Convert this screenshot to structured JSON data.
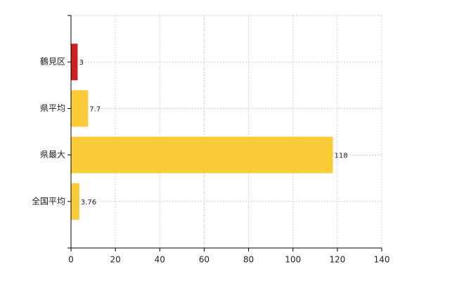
{
  "chart_data": {
    "type": "bar",
    "orientation": "horizontal",
    "categories": [
      "鶴見区",
      "県平均",
      "県最大",
      "全国平均"
    ],
    "values": [
      3,
      7.7,
      118,
      3.76
    ],
    "colors": [
      "#cc2222",
      "#fccb3a",
      "#fccb3a",
      "#fccb3a"
    ],
    "xlim": [
      0,
      140
    ],
    "xticks": [
      0,
      20,
      40,
      60,
      80,
      100,
      120,
      140
    ],
    "grid": true
  }
}
